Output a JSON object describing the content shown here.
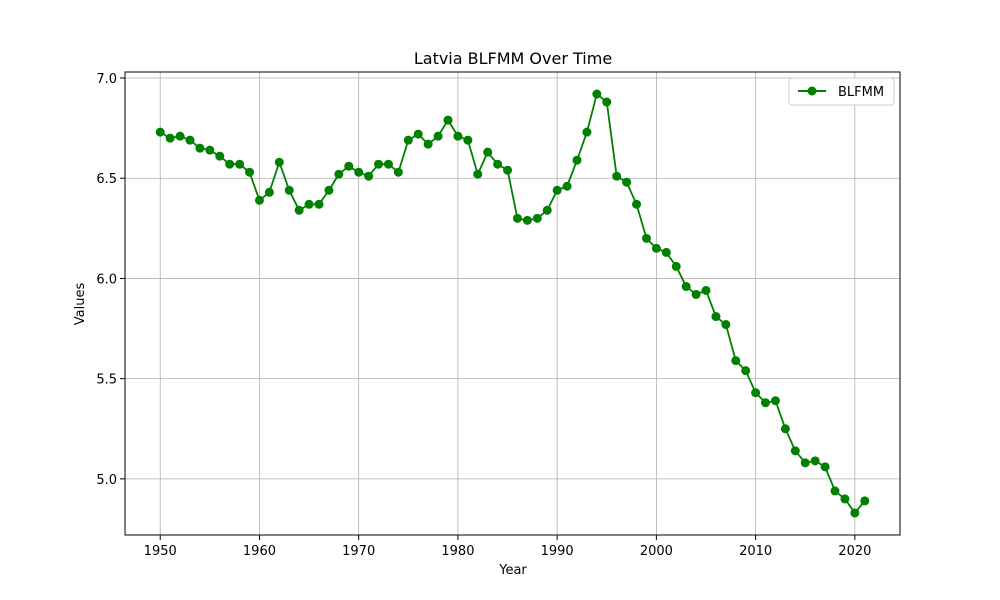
{
  "chart_data": {
    "type": "line",
    "title": "Latvia BLFMM Over Time",
    "xlabel": "Year",
    "ylabel": "Values",
    "xlim": [
      1946.45,
      2024.55
    ],
    "ylim": [
      4.72,
      7.03
    ],
    "x_ticks": [
      1950,
      1960,
      1970,
      1980,
      1990,
      2000,
      2010,
      2020
    ],
    "y_ticks": [
      5.0,
      5.5,
      6.0,
      6.5,
      7.0
    ],
    "y_tick_labels": [
      "5.0",
      "5.5",
      "6.0",
      "6.5",
      "7.0"
    ],
    "grid": true,
    "legend_position": "top-right",
    "series": [
      {
        "name": "BLFMM",
        "color": "#008000",
        "marker": "circle",
        "x": [
          1950,
          1951,
          1952,
          1953,
          1954,
          1955,
          1956,
          1957,
          1958,
          1959,
          1960,
          1961,
          1962,
          1963,
          1964,
          1965,
          1966,
          1967,
          1968,
          1969,
          1970,
          1971,
          1972,
          1973,
          1974,
          1975,
          1976,
          1977,
          1978,
          1979,
          1980,
          1981,
          1982,
          1983,
          1984,
          1985,
          1986,
          1987,
          1988,
          1989,
          1990,
          1991,
          1992,
          1993,
          1994,
          1995,
          1996,
          1997,
          1998,
          1999,
          2000,
          2001,
          2002,
          2003,
          2004,
          2005,
          2006,
          2007,
          2008,
          2009,
          2010,
          2011,
          2012,
          2013,
          2014,
          2015,
          2016,
          2017,
          2018,
          2019,
          2020,
          2021
        ],
        "values": [
          6.73,
          6.7,
          6.71,
          6.69,
          6.65,
          6.64,
          6.61,
          6.57,
          6.57,
          6.53,
          6.39,
          6.43,
          6.58,
          6.44,
          6.34,
          6.37,
          6.37,
          6.44,
          6.52,
          6.56,
          6.53,
          6.51,
          6.57,
          6.57,
          6.53,
          6.69,
          6.72,
          6.67,
          6.71,
          6.79,
          6.71,
          6.69,
          6.52,
          6.63,
          6.57,
          6.54,
          6.3,
          6.29,
          6.3,
          6.34,
          6.44,
          6.46,
          6.59,
          6.73,
          6.92,
          6.88,
          6.51,
          6.48,
          6.37,
          6.2,
          6.15,
          6.13,
          6.06,
          5.96,
          5.92,
          5.94,
          5.81,
          5.77,
          5.59,
          5.54,
          5.43,
          5.38,
          5.39,
          5.25,
          5.14,
          5.08,
          5.09,
          5.06,
          4.94,
          4.9,
          4.83,
          4.89
        ]
      }
    ]
  }
}
